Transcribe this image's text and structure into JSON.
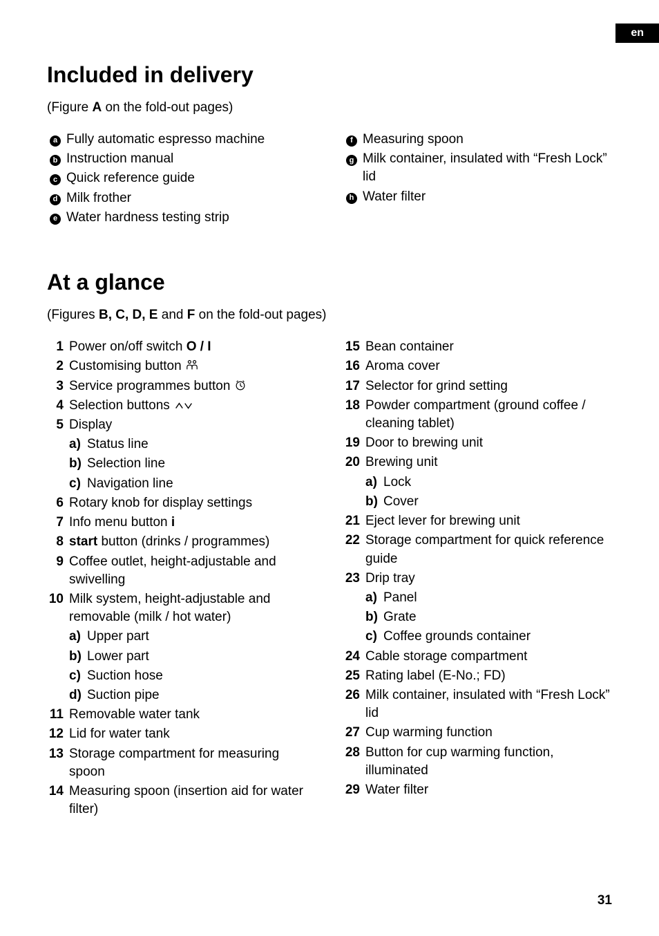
{
  "lang": "en",
  "page_number": "31",
  "section1": {
    "title": "Included in delivery",
    "figref_pre": "(Figure ",
    "figref_bold": "A",
    "figref_post": " on the fold-out pages)",
    "left": [
      {
        "m": "a",
        "t": "Fully automatic espresso machine"
      },
      {
        "m": "b",
        "t": "Instruction manual"
      },
      {
        "m": "c",
        "t": "Quick reference guide"
      },
      {
        "m": "d",
        "t": "Milk frother"
      },
      {
        "m": "e",
        "t": "Water hardness testing strip"
      }
    ],
    "right": [
      {
        "m": "f",
        "t": "Measuring spoon"
      },
      {
        "m": "g",
        "t": "Milk container, insulated with “Fresh Lock” lid"
      },
      {
        "m": "h",
        "t": "Water filter"
      }
    ]
  },
  "section2": {
    "title": "At a glance",
    "figref_pre": "(Figures ",
    "figref_bold1": "B, C, D, E",
    "figref_mid": " and ",
    "figref_bold2": "F",
    "figref_post": " on the fold-out pages)",
    "left": [
      {
        "n": "1",
        "t": "Power on/off switch ",
        "suffix_bold": "O / I"
      },
      {
        "n": "2",
        "t": "Customising button ",
        "icon": "person"
      },
      {
        "n": "3",
        "t": "Service programmes button ",
        "icon": "clock"
      },
      {
        "n": "4",
        "t": "Selection buttons ",
        "icon": "updown"
      },
      {
        "n": "5",
        "t": "Display",
        "subs": [
          {
            "m": "a)",
            "t": "Status line"
          },
          {
            "m": "b)",
            "t": "Selection line"
          },
          {
            "m": "c)",
            "t": "Navigation line"
          }
        ]
      },
      {
        "n": "6",
        "t": "Rotary knob for display settings"
      },
      {
        "n": "7",
        "t": "Info menu button ",
        "suffix_bold": "i"
      },
      {
        "n": "8",
        "prefix_bold": "start",
        "t": " button (drinks / programmes)"
      },
      {
        "n": "9",
        "t": "Coffee outlet, height-adjustable and swivelling"
      },
      {
        "n": "10",
        "t": "Milk system, height-adjustable and removable (milk / hot water)",
        "subs": [
          {
            "m": "a)",
            "t": "Upper part"
          },
          {
            "m": "b)",
            "t": "Lower part"
          },
          {
            "m": "c)",
            "t": "Suction hose"
          },
          {
            "m": "d)",
            "t": "Suction pipe"
          }
        ]
      },
      {
        "n": "11",
        "t": "Removable water tank"
      },
      {
        "n": "12",
        "t": "Lid for water tank"
      },
      {
        "n": "13",
        "t": "Storage compartment for measuring spoon"
      },
      {
        "n": "14",
        "t": "Measuring spoon (insertion aid for water filter)"
      }
    ],
    "right": [
      {
        "n": "15",
        "t": "Bean container"
      },
      {
        "n": "16",
        "t": "Aroma cover"
      },
      {
        "n": "17",
        "t": "Selector for grind setting"
      },
      {
        "n": "18",
        "t": "Powder compartment (ground coffee / cleaning tablet)"
      },
      {
        "n": "19",
        "t": "Door to brewing unit"
      },
      {
        "n": "20",
        "t": "Brewing unit",
        "subs": [
          {
            "m": "a)",
            "t": "Lock"
          },
          {
            "m": "b)",
            "t": "Cover"
          }
        ]
      },
      {
        "n": "21",
        "t": "Eject lever for brewing unit"
      },
      {
        "n": "22",
        "t": "Storage compartment for quick reference guide"
      },
      {
        "n": "23",
        "t": "Drip tray",
        "subs": [
          {
            "m": "a)",
            "t": "Panel"
          },
          {
            "m": "b)",
            "t": "Grate"
          },
          {
            "m": "c)",
            "t": "Coffee grounds container"
          }
        ]
      },
      {
        "n": "24",
        "t": "Cable storage compartment"
      },
      {
        "n": "25",
        "t": "Rating label (E-No.; FD)"
      },
      {
        "n": "26",
        "t": "Milk container, insulated with “Fresh Lock” lid"
      },
      {
        "n": "27",
        "t": "Cup warming function"
      },
      {
        "n": "28",
        "t": "Button for cup warming function, illuminated"
      },
      {
        "n": "29",
        "t": "Water filter"
      }
    ]
  }
}
